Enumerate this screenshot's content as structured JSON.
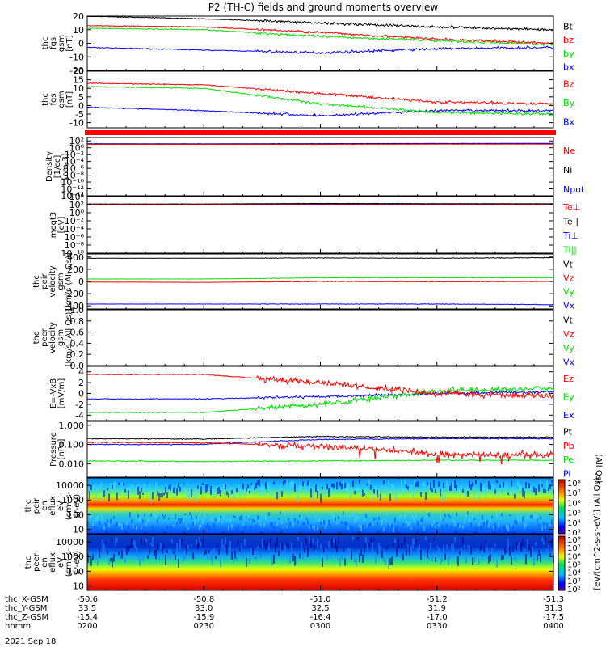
{
  "title": "P2 (TH-C) fields and ground moments overview",
  "date_label": "2021 Sep 18",
  "colors": {
    "black": "#000000",
    "red": "#ff0000",
    "green": "#00e000",
    "blue": "#0000ff"
  },
  "panels": [
    {
      "id": "fgs",
      "ylabel": [
        "thc",
        "fgs",
        "gsm",
        "[nT]"
      ],
      "type": "line",
      "ylim": [
        -20,
        20
      ],
      "scale": "linear",
      "ticks": [
        "20",
        "10",
        "0",
        "-10",
        "-20"
      ],
      "tick_values": [
        20,
        10,
        0,
        -10,
        -20
      ],
      "legend": [
        {
          "text": "Bt",
          "color": "#000000"
        },
        {
          "text": "bz",
          "color": "#ff0000"
        },
        {
          "text": "by",
          "color": "#00e000"
        },
        {
          "text": "bx",
          "color": "#0000ff"
        }
      ]
    },
    {
      "id": "fgm",
      "ylabel": [
        "thc",
        "fgs",
        "gsm",
        "[nT]"
      ],
      "type": "line",
      "ylim": [
        -13,
        20
      ],
      "scale": "linear",
      "ticks": [
        "20",
        "15",
        "10",
        "5",
        "0",
        "-5",
        "-10"
      ],
      "tick_values": [
        20,
        15,
        10,
        5,
        0,
        -5,
        -10
      ],
      "legend": [
        {
          "text": "Bz",
          "color": "#ff0000"
        },
        {
          "text": "By",
          "color": "#00e000"
        },
        {
          "text": "Bx",
          "color": "#0000ff"
        }
      ]
    },
    {
      "id": "density",
      "ylabel": [
        "Density",
        "[1/cc]",
        "[cm-3]"
      ],
      "type": "line",
      "ylim": [
        -14,
        3
      ],
      "scale": "log",
      "ticks": [
        "10²",
        "10⁰",
        "10⁻²",
        "10⁻⁴",
        "10⁻⁶",
        "10⁻⁸",
        "10⁻¹⁰",
        "10⁻¹²",
        "10⁻¹⁴"
      ],
      "tick_values": [
        2,
        0,
        -2,
        -4,
        -6,
        -8,
        -10,
        -12,
        -14
      ],
      "legend": [
        {
          "text": "Ne",
          "color": "#ff0000"
        },
        {
          "text": "Ni",
          "color": "#000000"
        },
        {
          "text": "Npot",
          "color": "#0000ff"
        }
      ]
    },
    {
      "id": "temp",
      "ylabel": [
        "moqt3",
        "[eV]"
      ],
      "type": "line",
      "ylim": [
        -10,
        4
      ],
      "scale": "log",
      "ticks": [
        "10⁴",
        "10²",
        "10⁰",
        "10⁻²",
        "10⁻⁴",
        "10⁻⁶",
        "10⁻⁸",
        "10⁻¹⁰"
      ],
      "tick_values": [
        4,
        2,
        0,
        -2,
        -4,
        -6,
        -8,
        -10
      ],
      "legend": [
        {
          "text": "Te⊥",
          "color": "#ff0000"
        },
        {
          "text": "Te||",
          "color": "#000000"
        },
        {
          "text": "Ti⊥",
          "color": "#0000ff"
        },
        {
          "text": "Ti||",
          "color": "#00e000"
        }
      ]
    },
    {
      "id": "peir_vel",
      "ylabel": [
        "thc",
        "peir",
        "velocity",
        "gsm",
        "[km/s (All Qs)]"
      ],
      "type": "line",
      "ylim": [
        -450,
        450
      ],
      "scale": "linear",
      "ticks": [
        "400",
        "200",
        "0",
        "-200",
        "-400"
      ],
      "tick_values": [
        400,
        200,
        0,
        -200,
        -400
      ],
      "legend": [
        {
          "text": "Vt",
          "color": "#000000"
        },
        {
          "text": "Vz",
          "color": "#ff0000"
        },
        {
          "text": "Vy",
          "color": "#00e000"
        },
        {
          "text": "Vx",
          "color": "#0000ff"
        }
      ]
    },
    {
      "id": "peer_vel",
      "ylabel": [
        "thc",
        "peer",
        "velocity",
        "gsm",
        "[km/s (All Qs)]"
      ],
      "type": "line",
      "ylim": [
        0,
        1
      ],
      "scale": "linear",
      "ticks": [
        "1.0",
        "0.8",
        "0.6",
        "0.4",
        "0.2",
        "0.0"
      ],
      "tick_values": [
        1,
        0.8,
        0.6,
        0.4,
        0.2,
        0
      ],
      "legend": [
        {
          "text": "Vt",
          "color": "#000000"
        },
        {
          "text": "Vz",
          "color": "#ff0000"
        },
        {
          "text": "Vy",
          "color": "#00e000"
        },
        {
          "text": "Vx",
          "color": "#0000ff"
        }
      ]
    },
    {
      "id": "efield",
      "ylabel": [
        "E=-VxB",
        "[mV/m]"
      ],
      "type": "line",
      "ylim": [
        -5,
        5
      ],
      "scale": "linear",
      "ticks": [
        "4",
        "2",
        "0",
        "-2",
        "-4"
      ],
      "tick_values": [
        4,
        2,
        0,
        -2,
        -4
      ],
      "legend": [
        {
          "text": "Ez",
          "color": "#ff0000"
        },
        {
          "text": "Ey",
          "color": "#00e000"
        },
        {
          "text": "Ex",
          "color": "#0000ff"
        }
      ]
    },
    {
      "id": "pressure",
      "ylabel": [
        "Pressure",
        "[nPa]"
      ],
      "type": "line",
      "ylim": [
        -2.7,
        0.2
      ],
      "scale": "log",
      "ticks": [
        "1.000",
        "0.100",
        "0.010"
      ],
      "tick_values": [
        0,
        -1,
        -2
      ],
      "side_label": "(All Qs)",
      "legend": [
        {
          "text": "Pt",
          "color": "#000000"
        },
        {
          "text": "Pb",
          "color": "#ff0000"
        },
        {
          "text": "Pe",
          "color": "#00e000"
        },
        {
          "text": "Pi",
          "color": "#0000ff"
        }
      ]
    },
    {
      "id": "peir_spec",
      "ylabel": [
        "thc",
        "peir",
        "en",
        "eflux",
        "eV",
        "(cm²-s-",
        "sr-eV)"
      ],
      "type": "heatmap",
      "ylim": [
        0.7,
        4.5
      ],
      "scale": "log",
      "ticks": [
        "10000",
        "1000",
        "100",
        "10"
      ],
      "tick_values": [
        4,
        3,
        2,
        1
      ],
      "legend": []
    },
    {
      "id": "peer_spec",
      "ylabel": [
        "thc",
        "peer",
        "en",
        "eflux",
        "eV",
        "(cm²-s-",
        "sr-eV)"
      ],
      "type": "heatmap",
      "ylim": [
        0.7,
        4.5
      ],
      "scale": "log",
      "ticks": [
        "10000",
        "1000",
        "100",
        "10"
      ],
      "tick_values": [
        4,
        3,
        2,
        1
      ],
      "legend": []
    }
  ],
  "colorbar": {
    "upper_ticks": [
      "10⁸",
      "10⁷",
      "10⁶",
      "10⁵",
      "10⁴",
      "10³"
    ],
    "lower_ticks": [
      "10⁸",
      "10⁷",
      "10⁶",
      "10⁵",
      "10⁴",
      "10³",
      "10²"
    ],
    "label": "[eV/(cm^2-s-sr-eV)] (All Qs)",
    "label_lower": "[eV/(cm^2-s-sr-eV)]"
  },
  "x_axis": {
    "labels": [
      "thc_X-GSM",
      "thc_Y-GSM",
      "thc_Z-GSM",
      "hhmm"
    ],
    "ticks": [
      {
        "X": "-50.6",
        "Y": "33.5",
        "Z": "-15.4",
        "hhmm": "0200"
      },
      {
        "X": "-50.8",
        "Y": "33.0",
        "Z": "-15.9",
        "hhmm": "0230"
      },
      {
        "X": "-51.0",
        "Y": "32.5",
        "Z": "-16.4",
        "hhmm": "0300"
      },
      {
        "X": "-51.2",
        "Y": "31.9",
        "Z": "-17.0",
        "hhmm": "0330"
      },
      {
        "X": "-51.3",
        "Y": "31.3",
        "Z": "-17.5",
        "hhmm": "0400"
      }
    ]
  },
  "chart_data": [
    {
      "type": "line",
      "title": "P2 (TH-C) fields and ground moments overview",
      "panel": "fgs",
      "ylabel": "thc fgs gsm [nT]",
      "ylim": [
        -20,
        20
      ],
      "x": [
        "0200",
        "0230",
        "0300",
        "0330",
        "0400"
      ],
      "series": [
        {
          "name": "Bt",
          "color": "#000000",
          "values": [
            20,
            18,
            15,
            12,
            10
          ]
        },
        {
          "name": "bz",
          "color": "#ff0000",
          "values": [
            13,
            12,
            8,
            3,
            0
          ]
        },
        {
          "name": "by",
          "color": "#00e000",
          "values": [
            11,
            10,
            5,
            2,
            -1
          ]
        },
        {
          "name": "bx",
          "color": "#0000ff",
          "values": [
            -3,
            -5,
            -7,
            -4,
            -3
          ]
        }
      ]
    },
    {
      "type": "line",
      "panel": "fgm",
      "ylabel": "thc fgs gsm [nT]",
      "ylim": [
        -13,
        20
      ],
      "x": [
        "0200",
        "0230",
        "0300",
        "0330",
        "0400"
      ],
      "series": [
        {
          "name": "Bz",
          "color": "#ff0000",
          "values": [
            13,
            12,
            7,
            2,
            1
          ]
        },
        {
          "name": "By",
          "color": "#00e000",
          "values": [
            11,
            10,
            1,
            -4,
            -5
          ]
        },
        {
          "name": "Bx",
          "color": "#0000ff",
          "values": [
            -1,
            -3,
            -6,
            -3,
            -3
          ]
        }
      ]
    },
    {
      "type": "line",
      "panel": "density",
      "ylabel": "Density [1/cc] [cm-3]",
      "ylim": [
        1e-14,
        1000
      ],
      "x": [
        "0200",
        "0230",
        "0300",
        "0330",
        "0400"
      ],
      "series": [
        {
          "name": "Ne",
          "color": "#ff0000",
          "values": [
            10,
            10,
            10,
            12,
            12
          ]
        },
        {
          "name": "Ni",
          "color": "#000000",
          "values": [
            12,
            11,
            12,
            13,
            13
          ]
        },
        {
          "name": "Npot",
          "color": "#0000ff",
          "values": [
            15,
            14,
            16,
            18,
            20
          ]
        }
      ]
    },
    {
      "type": "line",
      "panel": "temp",
      "ylabel": "moqt3 [eV]",
      "ylim": [
        1e-10,
        10000
      ],
      "x": [
        "0200",
        "0230",
        "0300",
        "0330",
        "0400"
      ],
      "series": [
        {
          "name": "Te⊥",
          "color": "#ff0000",
          "values": [
            100,
            100,
            100,
            100,
            100
          ]
        },
        {
          "name": "Te||",
          "color": "#000000",
          "values": [
            150,
            150,
            200,
            180,
            170
          ]
        },
        {
          "name": "Ti⊥",
          "color": "#0000ff",
          "values": [
            120,
            120,
            150,
            140,
            130
          ]
        },
        {
          "name": "Ti||",
          "color": "#00e000",
          "values": [
            110,
            110,
            130,
            120,
            120
          ]
        }
      ]
    },
    {
      "type": "line",
      "panel": "peir_vel",
      "ylabel": "thc peir velocity gsm [km/s (All Qs)]",
      "ylim": [
        -450,
        450
      ],
      "x": [
        "0200",
        "0230",
        "0300",
        "0330",
        "0400"
      ],
      "series": [
        {
          "name": "Vt",
          "color": "#000000",
          "values": [
            380,
            380,
            385,
            380,
            390
          ]
        },
        {
          "name": "Vz",
          "color": "#ff0000",
          "values": [
            -10,
            -15,
            0,
            -5,
            0
          ]
        },
        {
          "name": "Vy",
          "color": "#00e000",
          "values": [
            40,
            40,
            60,
            60,
            60
          ]
        },
        {
          "name": "Vx",
          "color": "#0000ff",
          "values": [
            -370,
            -370,
            -370,
            -370,
            -380
          ]
        }
      ]
    },
    {
      "type": "line",
      "panel": "efield",
      "ylabel": "E=-VxB [mV/m]",
      "ylim": [
        -5,
        5
      ],
      "x": [
        "0200",
        "0230",
        "0300",
        "0330",
        "0400"
      ],
      "series": [
        {
          "name": "Ez",
          "color": "#ff0000",
          "values": [
            3.5,
            3.5,
            2.0,
            0.0,
            -0.5
          ]
        },
        {
          "name": "Ey",
          "color": "#00e000",
          "values": [
            -3.5,
            -3.5,
            -2.0,
            0.5,
            1.0
          ]
        },
        {
          "name": "Ex",
          "color": "#0000ff",
          "values": [
            -1.0,
            -1.0,
            -0.6,
            0.0,
            0.3
          ]
        }
      ]
    },
    {
      "type": "line",
      "panel": "pressure",
      "ylabel": "Pressure [nPa]",
      "ylim": [
        0.002,
        1.5
      ],
      "x": [
        "0200",
        "0230",
        "0300",
        "0330",
        "0400"
      ],
      "series": [
        {
          "name": "Pt",
          "color": "#000000",
          "values": [
            0.2,
            0.19,
            0.26,
            0.24,
            0.24
          ]
        },
        {
          "name": "Pb",
          "color": "#ff0000",
          "values": [
            0.13,
            0.12,
            0.08,
            0.03,
            0.03
          ]
        },
        {
          "name": "Pe",
          "color": "#00e000",
          "values": [
            0.014,
            0.013,
            0.014,
            0.015,
            0.015
          ]
        },
        {
          "name": "Pi",
          "color": "#0000ff",
          "values": [
            0.1,
            0.1,
            0.18,
            0.2,
            0.2
          ]
        }
      ]
    }
  ]
}
